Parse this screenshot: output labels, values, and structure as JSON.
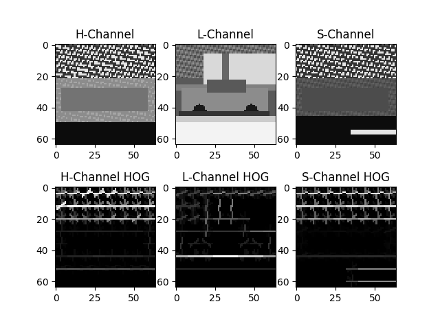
{
  "chart_data": [
    {
      "type": "image",
      "title": "H-Channel",
      "xlim": [
        -0.5,
        63.5
      ],
      "ylim": [
        63.5,
        -0.5
      ],
      "xticks": [
        0,
        25,
        50
      ],
      "yticks": [
        0,
        20,
        40,
        60
      ]
    },
    {
      "type": "image",
      "title": "L-Channel",
      "xlim": [
        -0.5,
        63.5
      ],
      "ylim": [
        63.5,
        -0.5
      ],
      "xticks": [
        0,
        25,
        50
      ],
      "yticks": [
        0,
        20,
        40,
        60
      ]
    },
    {
      "type": "image",
      "title": "S-Channel",
      "xlim": [
        -0.5,
        63.5
      ],
      "ylim": [
        63.5,
        -0.5
      ],
      "xticks": [
        0,
        25,
        50
      ],
      "yticks": [
        0,
        20,
        40,
        60
      ]
    },
    {
      "type": "image",
      "title": "H-Channel HOG",
      "xlim": [
        -0.5,
        63.5
      ],
      "ylim": [
        63.5,
        -0.5
      ],
      "xticks": [
        0,
        25,
        50
      ],
      "yticks": [
        0,
        20,
        40,
        60
      ]
    },
    {
      "type": "image",
      "title": "L-Channel HOG",
      "xlim": [
        -0.5,
        63.5
      ],
      "ylim": [
        63.5,
        -0.5
      ],
      "xticks": [
        0,
        25,
        50
      ],
      "yticks": [
        0,
        20,
        40,
        60
      ]
    },
    {
      "type": "image",
      "title": "S-Channel HOG",
      "xlim": [
        -0.5,
        63.5
      ],
      "ylim": [
        63.5,
        -0.5
      ],
      "xticks": [
        0,
        25,
        50
      ],
      "yticks": [
        0,
        20,
        40,
        60
      ]
    }
  ]
}
